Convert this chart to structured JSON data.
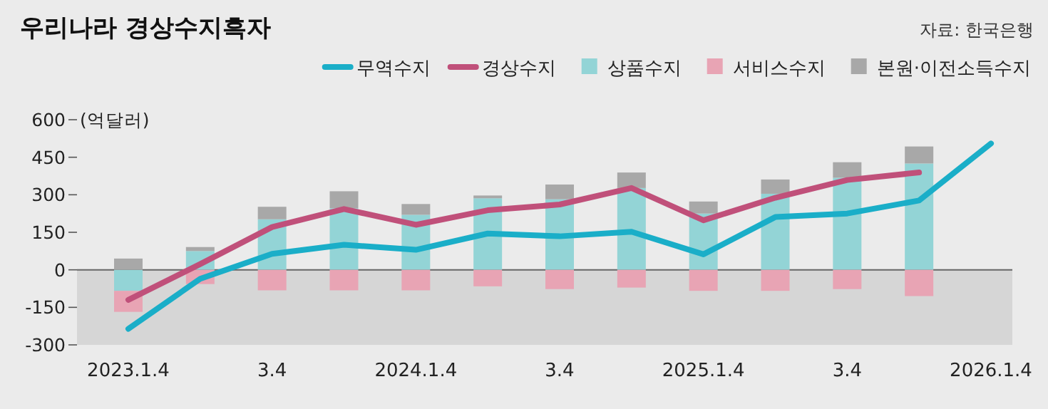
{
  "chart_data": {
    "type": "bar",
    "title": "우리나라 경상수지흑자",
    "ylabel": "(억달러)",
    "annotations": [
      "자료: 한국은행"
    ],
    "stacked": true,
    "legend": "top right",
    "grid": false,
    "marker": "none",
    "line_style": "solid",
    "categories": [
      "2023.1.4",
      null,
      "3.4",
      null,
      "2024.1.4",
      null,
      "3.4",
      null,
      "2025.1.4",
      null,
      "3.4",
      null,
      "2026.1.4"
    ],
    "ylim": [
      -300,
      600
    ],
    "yticks": [
      -300,
      -150,
      0,
      150,
      300,
      450,
      600
    ],
    "ref_lines": [
      {
        "axis": "y",
        "value": 0,
        "color": "#666666"
      }
    ],
    "bands": [
      {
        "axis": "y",
        "from": -300,
        "to": 0,
        "color": "#d6d6d6"
      }
    ],
    "series": [
      {
        "name": "무역수지",
        "type": "line",
        "color": "#1aaec8",
        "values": [
          -236,
          -36,
          64,
          100,
          80,
          145,
          134,
          152,
          62,
          211,
          225,
          277,
          505
        ]
      },
      {
        "name": "경상수지",
        "type": "line",
        "color": "#c0507a",
        "values": [
          -120,
          23,
          171,
          243,
          180,
          238,
          261,
          327,
          198,
          288,
          359,
          389,
          null
        ]
      },
      {
        "name": "상품수지",
        "type": "bar",
        "color": "#93d4d6",
        "values": [
          -84,
          75,
          202,
          246,
          220,
          286,
          282,
          327,
          225,
          304,
          368,
          425,
          null
        ]
      },
      {
        "name": "서비스수지",
        "type": "bar",
        "color": "#e8a4b4",
        "values": [
          -84,
          -57,
          -82,
          -82,
          -82,
          -66,
          -77,
          -71,
          -84,
          -84,
          -77,
          -105,
          null
        ]
      },
      {
        "name": "본원·이전소득수지",
        "type": "bar",
        "color": "#a8a8a8",
        "values": [
          45,
          16,
          50,
          68,
          43,
          11,
          59,
          62,
          48,
          57,
          62,
          68,
          null
        ]
      }
    ]
  }
}
